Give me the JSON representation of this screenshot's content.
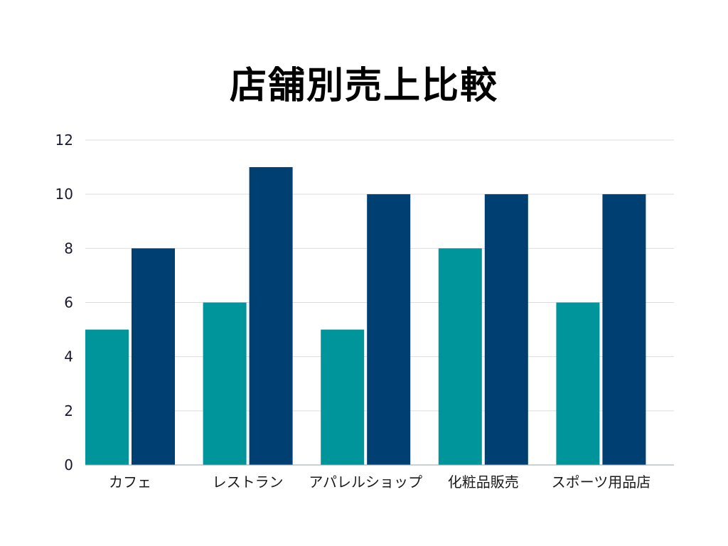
{
  "chart_data": {
    "type": "bar",
    "title": "店舗別売上比較",
    "categories": [
      "カフェ",
      "レストラン",
      "アパレルショップ",
      "化粧品販売",
      "スポーツ用品店"
    ],
    "series": [
      {
        "values": [
          5,
          6,
          5,
          8,
          6
        ],
        "color": "#00959a"
      },
      {
        "values": [
          8,
          11,
          10,
          10,
          10
        ],
        "color": "#003f72"
      }
    ],
    "ylim": [
      0,
      12
    ],
    "yticks": [
      0,
      2,
      4,
      6,
      8,
      10,
      12
    ],
    "xlabel": "",
    "ylabel": "",
    "grid": true,
    "legend": "none",
    "gridColor": "#d9dde2",
    "axisColor": "#9aa3ad"
  }
}
